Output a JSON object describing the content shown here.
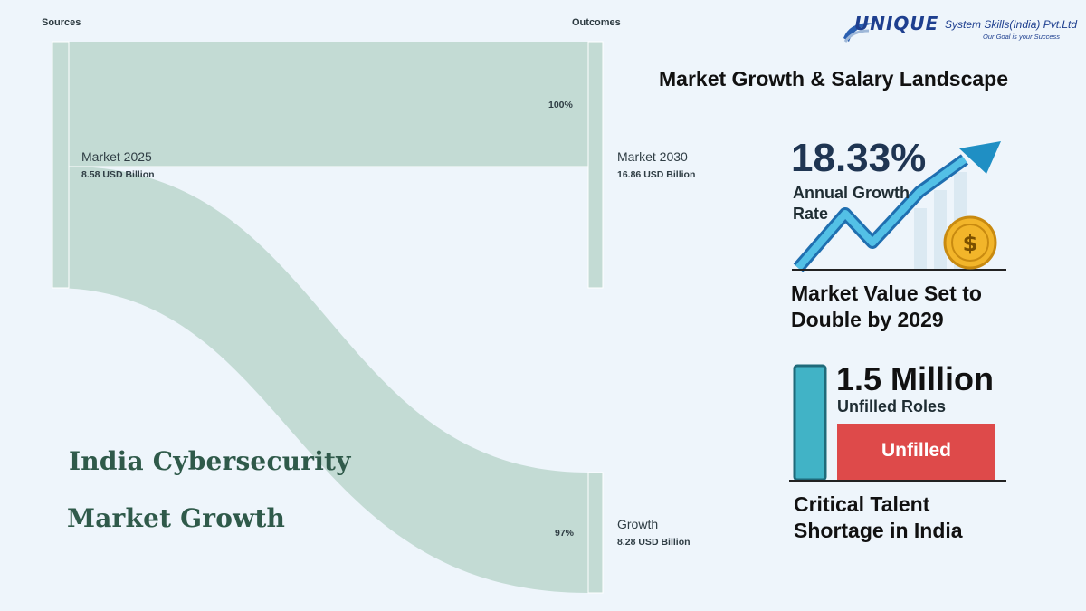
{
  "sankey": {
    "sources_label": "Sources",
    "outcomes_label": "Outcomes",
    "nodes": {
      "source": {
        "label": "Market 2025",
        "value": "8.58 USD Billion"
      },
      "target_top": {
        "label": "Market 2030",
        "value": "16.86 USD Billion"
      },
      "target_bottom": {
        "label": "Growth",
        "value": "8.28 USD Billion"
      }
    }
  },
  "left_title": {
    "line1": "India Cybersecurity",
    "line2": "Market Growth"
  },
  "logo": {
    "word": "UNIQUE",
    "rest": "System Skills(India) Pvt.Ltd",
    "tagline": "Our Goal is your Success"
  },
  "right_panel": {
    "title": "Market Growth & Salary Landscape",
    "growth_value": "18.33%",
    "growth_label_1": "Annual Growth",
    "growth_label_2": "Rate",
    "growth_icon": "dollar-coin",
    "market_line1": "Market Value Set to",
    "market_line2": "Double by 2029",
    "roles_value": "1.5 Million",
    "roles_label": "Unfilled Roles",
    "bar_label": "Unfilled",
    "shortage_line1": "Critical Talent",
    "shortage_line2": "Shortage in India"
  },
  "colors": {
    "flow": "#c3dbd4",
    "node": "#c3dbd4",
    "bar_red": "#de4a4a",
    "bar_teal": "#41b3c6",
    "arrow": "#1f8fc4",
    "coin": "#f2b52a"
  },
  "chart_data": {
    "type": "sankey",
    "units": "USD Billion",
    "nodes": [
      "Market 2025",
      "Market 2030",
      "Growth"
    ],
    "links": [
      {
        "source": "Market 2025",
        "target": "Market 2030",
        "value": 8.58,
        "label": "100%"
      },
      {
        "source": "Market 2025",
        "target": "Growth",
        "value": 8.28,
        "label": "97%"
      }
    ],
    "node_values": {
      "Market 2025": 8.58,
      "Market 2030": 16.86,
      "Growth": 8.28
    }
  }
}
